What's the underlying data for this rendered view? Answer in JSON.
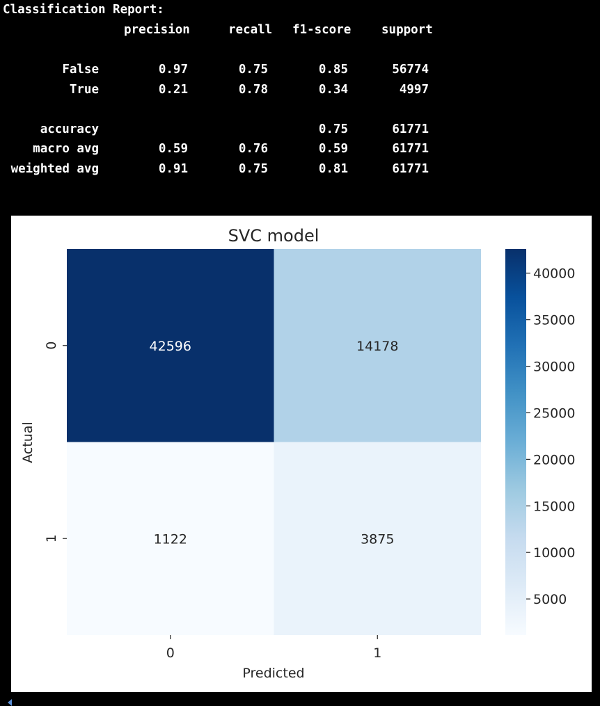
{
  "report": {
    "title": "Classification Report:",
    "headers": {
      "precision": "precision",
      "recall": "recall",
      "f1": "f1-score",
      "support": "support"
    },
    "rows": [
      {
        "label": "False",
        "precision": "0.97",
        "recall": "0.75",
        "f1": "0.85",
        "support": "56774"
      },
      {
        "label": "True",
        "precision": "0.21",
        "recall": "0.78",
        "f1": "0.34",
        "support": "4997"
      },
      {
        "label": "accuracy",
        "precision": "",
        "recall": "",
        "f1": "0.75",
        "support": "61771"
      },
      {
        "label": "macro avg",
        "precision": "0.59",
        "recall": "0.76",
        "f1": "0.59",
        "support": "61771"
      },
      {
        "label": "weighted avg",
        "precision": "0.91",
        "recall": "0.75",
        "f1": "0.81",
        "support": "61771"
      }
    ]
  },
  "chart_data": {
    "type": "heatmap",
    "title": "SVC model",
    "xlabel": "Predicted",
    "ylabel": "Actual",
    "x_categories": [
      "0",
      "1"
    ],
    "y_categories": [
      "0",
      "1"
    ],
    "values": [
      [
        42596,
        14178
      ],
      [
        1122,
        3875
      ]
    ],
    "colormap": "Blues",
    "colorbar": {
      "ticks": [
        5000,
        10000,
        15000,
        20000,
        25000,
        30000,
        35000,
        40000
      ]
    }
  },
  "colors": {
    "background": "#000000",
    "report_text": "#ffffff",
    "figure_bg": "#ffffff",
    "text": "#262626"
  }
}
